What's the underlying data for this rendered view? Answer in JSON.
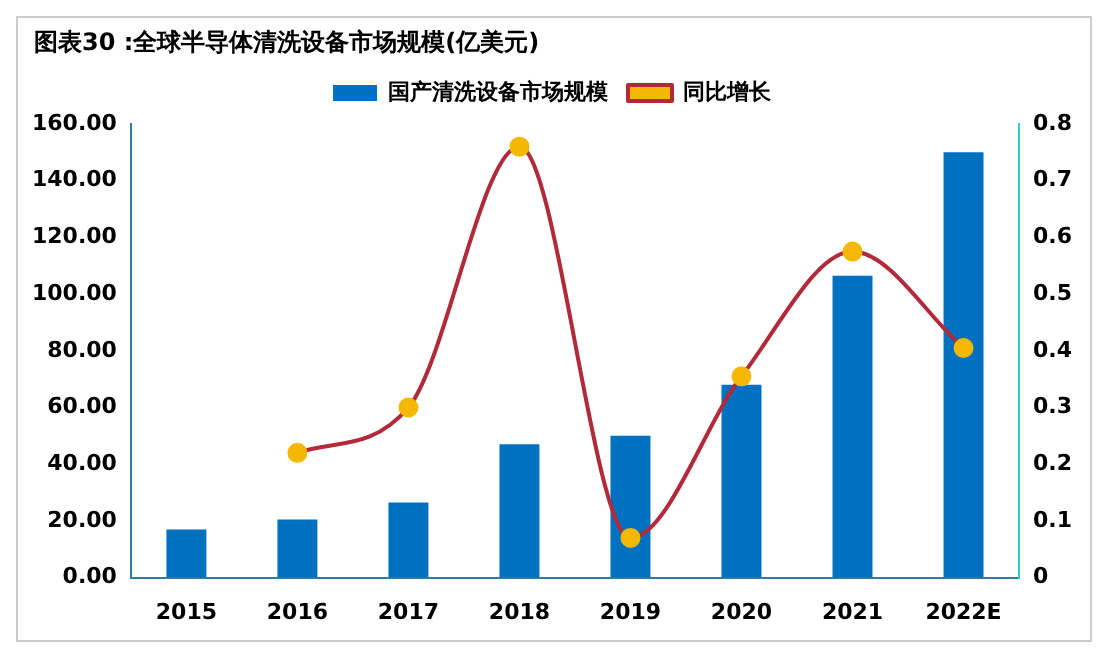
{
  "chart_data": {
    "type": "bar",
    "title": "图表30 :全球半导体清洗设备市场规模(亿美元)",
    "categories": [
      "2015",
      "2016",
      "2017",
      "2018",
      "2019",
      "2020",
      "2021",
      "2022E"
    ],
    "series": [
      {
        "name": "国产清洗设备市场规模",
        "color": "#0070c0",
        "values": [
          17,
          20.5,
          26.5,
          47,
          50,
          68,
          106.5,
          150
        ]
      },
      {
        "name": "同比增长",
        "type": "line",
        "axis": "y2",
        "color": "#b22a3a",
        "values": [
          null,
          0.22,
          0.3,
          0.76,
          0.07,
          0.355,
          0.575,
          0.405
        ]
      }
    ],
    "ylim": [
      0,
      160
    ],
    "yticks": [
      {
        "value": 0,
        "label": "0.00"
      },
      {
        "value": 20,
        "label": "20.00"
      },
      {
        "value": 40,
        "label": "40.00"
      },
      {
        "value": 60,
        "label": "60.00"
      },
      {
        "value": 80,
        "label": "80.00"
      },
      {
        "value": 100,
        "label": "100.00"
      },
      {
        "value": 120,
        "label": "120.00"
      },
      {
        "value": 140,
        "label": "140.00"
      },
      {
        "value": 160,
        "label": "160.00"
      }
    ],
    "y2lim": [
      0,
      0.8
    ],
    "y2ticks": [
      0,
      0.1,
      0.2,
      0.3,
      0.4,
      0.5,
      0.6,
      0.7,
      0.8
    ],
    "grid": false,
    "legend": "top",
    "marker": "circle",
    "line_style": "solid"
  }
}
